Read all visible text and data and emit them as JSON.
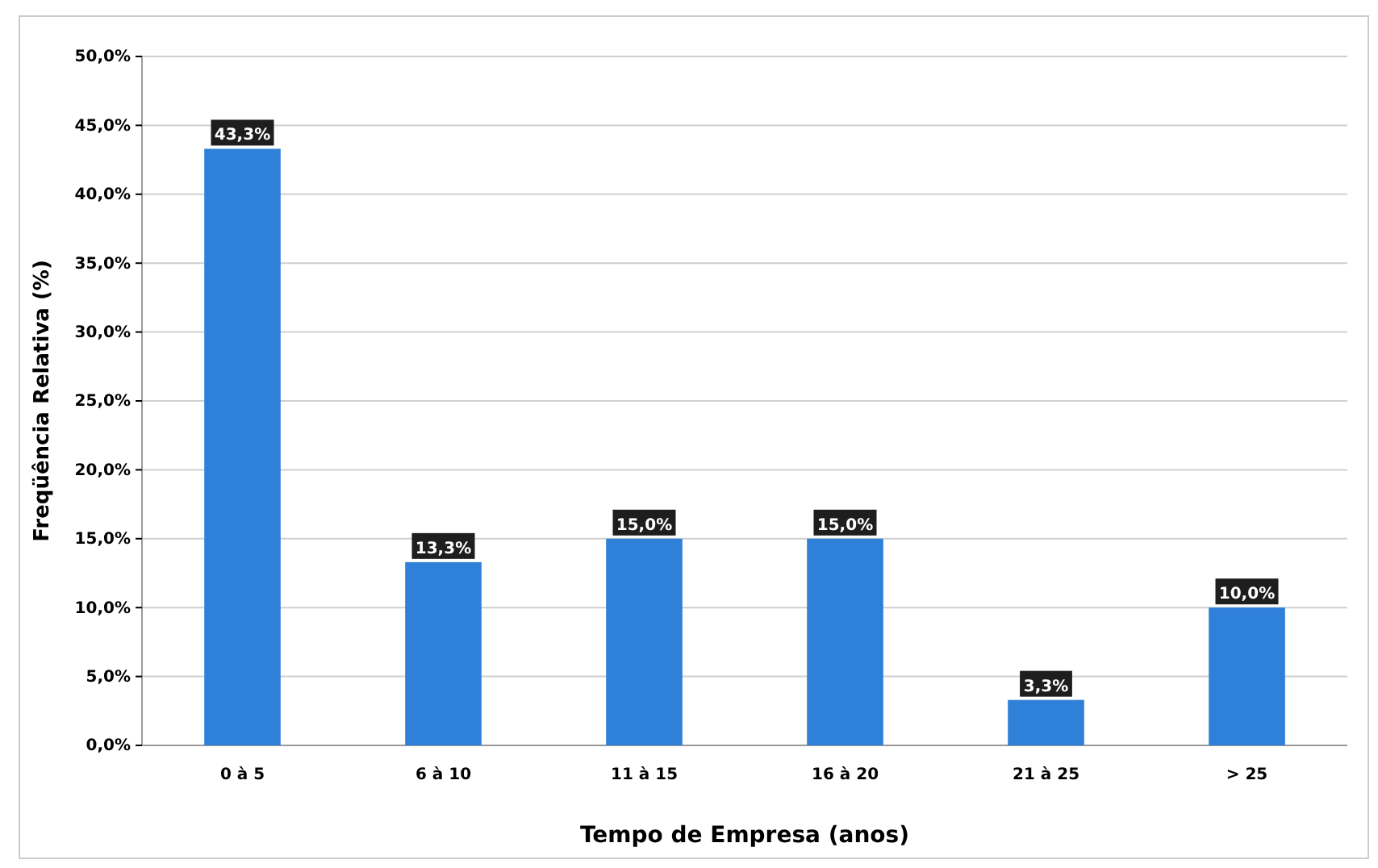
{
  "chart_data": {
    "type": "bar",
    "xlabel": "Tempo de Empresa (anos)",
    "ylabel": "Freqüência Relativa (%)",
    "categories": [
      "0 à 5",
      "6 à 10",
      "11 à 15",
      "16 à 20",
      "21 à 25",
      "> 25"
    ],
    "values": [
      43.3,
      13.3,
      15.0,
      15.0,
      3.3,
      10.0
    ],
    "value_labels": [
      "43,3%",
      "13,3%",
      "15,0%",
      "15,0%",
      "3,3%",
      "10,0%"
    ],
    "color": "#2f80d8",
    "ylim": [
      0,
      50
    ],
    "yticks": [
      {
        "value": 0,
        "label": "0,0%"
      },
      {
        "value": 5,
        "label": "5,0%"
      },
      {
        "value": 10,
        "label": "10,0%"
      },
      {
        "value": 15,
        "label": "15,0%"
      },
      {
        "value": 20,
        "label": "20,0%"
      },
      {
        "value": 25,
        "label": "25,0%"
      },
      {
        "value": 30,
        "label": "30,0%"
      },
      {
        "value": 35,
        "label": "35,0%"
      },
      {
        "value": 40,
        "label": "40,0%"
      },
      {
        "value": 45,
        "label": "45,0%"
      },
      {
        "value": 50,
        "label": "50,0%"
      }
    ],
    "grid": "y"
  }
}
